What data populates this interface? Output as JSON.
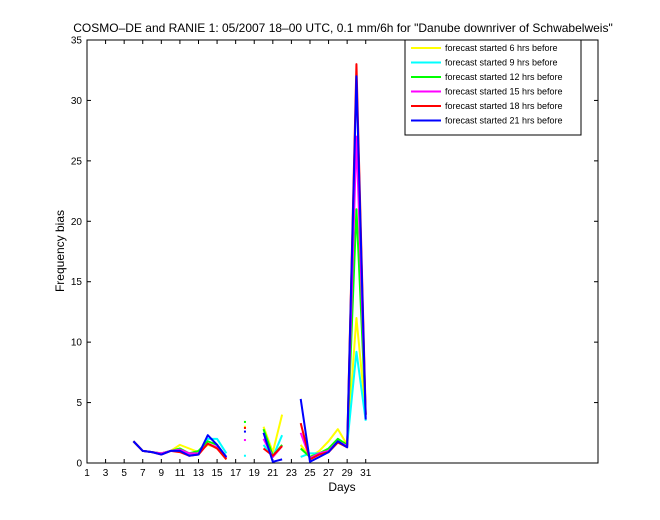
{
  "chart_data": {
    "type": "line",
    "title": "COSMO–DE and RANIE 1: 05/2007 18–00 UTC, 0.1 mm/6h for \"Danube downriver of Schwabelweis\"",
    "xlabel": "Days",
    "ylabel": "Frequency bias",
    "xlim": [
      1,
      56
    ],
    "ylim": [
      0,
      35
    ],
    "xticks": [
      1,
      3,
      5,
      7,
      9,
      11,
      13,
      15,
      17,
      19,
      21,
      23,
      25,
      27,
      29,
      31
    ],
    "yticks": [
      0,
      5,
      10,
      15,
      20,
      25,
      30,
      35
    ],
    "grid": false,
    "legend_position": "top-right",
    "series": [
      {
        "name": "forecast started  6 hrs before",
        "color": "#ffff00",
        "x": [
          6,
          7,
          8,
          9,
          10,
          11,
          12,
          13,
          14,
          15,
          16,
          null,
          18,
          null,
          20,
          21,
          22,
          null,
          24,
          25,
          26,
          27,
          28,
          29,
          30,
          31
        ],
        "y": [
          1.8,
          1.0,
          0.9,
          0.8,
          1.0,
          1.5,
          1.2,
          0.9,
          1.5,
          1.3,
          0.3,
          null,
          3.0,
          null,
          3.0,
          0.9,
          4.0,
          null,
          1.5,
          0.5,
          1.0,
          1.8,
          2.8,
          1.5,
          12.0,
          4.0
        ]
      },
      {
        "name": "forecast started  9 hrs before",
        "color": "#00ffff",
        "x": [
          6,
          7,
          8,
          9,
          10,
          11,
          12,
          13,
          14,
          15,
          16,
          null,
          18,
          null,
          20,
          21,
          22,
          null,
          24,
          25,
          26,
          27,
          28,
          29,
          30,
          31
        ],
        "y": [
          1.8,
          1.0,
          0.9,
          0.8,
          1.0,
          1.0,
          0.7,
          0.8,
          2.0,
          2.0,
          0.8,
          null,
          0.6,
          null,
          1.5,
          0.5,
          2.3,
          null,
          0.5,
          0.8,
          0.8,
          1.0,
          1.8,
          1.5,
          9.2,
          3.5
        ]
      },
      {
        "name": "forecast started 12 hrs before",
        "color": "#00ff00",
        "x": [
          6,
          7,
          8,
          9,
          10,
          11,
          12,
          13,
          14,
          15,
          16,
          null,
          18,
          null,
          20,
          21,
          22,
          null,
          24,
          25,
          26,
          27,
          28,
          29,
          30,
          31
        ],
        "y": [
          1.8,
          1.0,
          0.9,
          0.8,
          1.0,
          1.2,
          0.8,
          1.0,
          1.8,
          1.5,
          0.4,
          null,
          3.4,
          null,
          2.8,
          0.6,
          1.5,
          null,
          1.2,
          0.5,
          0.8,
          1.2,
          2.0,
          1.5,
          21.0,
          4.0
        ]
      },
      {
        "name": "forecast started 15 hrs before",
        "color": "#ff00ff",
        "x": [
          6,
          7,
          8,
          9,
          10,
          11,
          12,
          13,
          14,
          15,
          16,
          null,
          18,
          null,
          20,
          21,
          22,
          null,
          24,
          25,
          26,
          27,
          28,
          29,
          30,
          31
        ],
        "y": [
          1.8,
          1.0,
          0.9,
          0.8,
          1.0,
          1.1,
          0.8,
          0.8,
          1.6,
          1.3,
          0.4,
          null,
          1.9,
          null,
          2.0,
          0.5,
          1.4,
          null,
          2.5,
          0.4,
          0.8,
          1.0,
          1.8,
          1.4,
          27.0,
          4.0
        ]
      },
      {
        "name": "forecast started 18 hrs before",
        "color": "#ff0000",
        "x": [
          6,
          7,
          8,
          9,
          10,
          11,
          12,
          13,
          14,
          15,
          16,
          null,
          18,
          null,
          20,
          21,
          22,
          null,
          24,
          25,
          26,
          27,
          28,
          29,
          30,
          31
        ],
        "y": [
          1.8,
          1.0,
          0.9,
          0.7,
          1.0,
          0.9,
          0.6,
          0.7,
          1.6,
          1.2,
          0.3,
          null,
          2.9,
          null,
          1.2,
          0.6,
          1.4,
          null,
          3.3,
          0.3,
          0.7,
          0.9,
          1.7,
          1.3,
          33.0,
          4.0
        ]
      },
      {
        "name": "forecast started 21 hrs before",
        "color": "#0000ff",
        "x": [
          6,
          7,
          8,
          9,
          10,
          11,
          12,
          13,
          14,
          15,
          16,
          null,
          18,
          null,
          20,
          21,
          22,
          null,
          24,
          25,
          26,
          27,
          28,
          29,
          30,
          31
        ],
        "y": [
          1.8,
          1.0,
          0.9,
          0.7,
          1.0,
          1.0,
          0.6,
          0.7,
          2.3,
          1.5,
          0.5,
          null,
          2.6,
          null,
          2.5,
          0.1,
          0.3,
          null,
          5.3,
          0.1,
          0.5,
          0.9,
          1.8,
          1.3,
          32.0,
          3.6
        ]
      }
    ]
  }
}
